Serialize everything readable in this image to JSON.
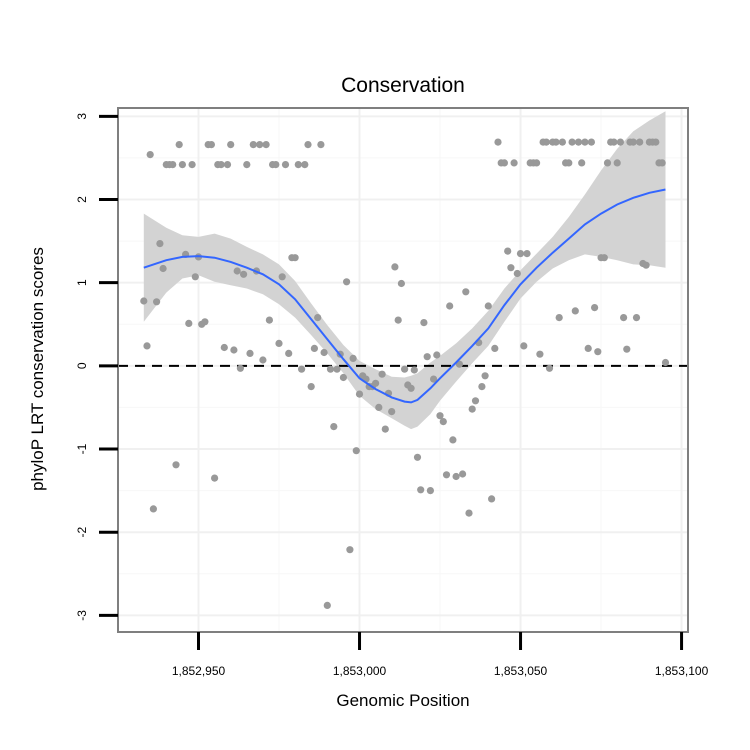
{
  "chart_data": {
    "type": "scatter",
    "title": "Conservation",
    "xlabel": "Genomic Position",
    "ylabel": "phyloP LRT conservation scores",
    "xlim": [
      1852925,
      1853102
    ],
    "ylim": [
      -3.2,
      3.1
    ],
    "x_ticks": [
      1852950,
      1853000,
      1853050,
      1853100
    ],
    "x_tick_labels": [
      "1,852,950",
      "1,853,000",
      "1,853,050",
      "1,853,100"
    ],
    "y_ticks": [
      -3,
      -2,
      -1,
      0,
      1,
      2,
      3
    ],
    "y_tick_labels": [
      "-3",
      "-2",
      "-1",
      "0",
      "1",
      "2",
      "3"
    ],
    "reference_line": {
      "y": 0,
      "style": "dashed",
      "color": "#000000"
    },
    "colors": {
      "points": "#999999",
      "smooth_line": "#3366ff",
      "confidence_band": "#d3d3d3",
      "panel_border": "#7f7f7f"
    },
    "points": [
      [
        1852933,
        0.78
      ],
      [
        1852934,
        0.24
      ],
      [
        1852935,
        2.54
      ],
      [
        1852936,
        -1.72
      ],
      [
        1852937,
        0.77
      ],
      [
        1852938,
        1.47
      ],
      [
        1852939,
        1.17
      ],
      [
        1852940,
        2.42
      ],
      [
        1852941,
        2.42
      ],
      [
        1852942,
        2.42
      ],
      [
        1852943,
        -1.19
      ],
      [
        1852944,
        2.66
      ],
      [
        1852945,
        2.42
      ],
      [
        1852946,
        1.34
      ],
      [
        1852947,
        0.51
      ],
      [
        1852948,
        2.42
      ],
      [
        1852949,
        1.07
      ],
      [
        1852950,
        1.31
      ],
      [
        1852951,
        0.5
      ],
      [
        1852952,
        0.53
      ],
      [
        1852953,
        2.66
      ],
      [
        1852954,
        2.66
      ],
      [
        1852955,
        -1.35
      ],
      [
        1852956,
        2.42
      ],
      [
        1852957,
        2.42
      ],
      [
        1852958,
        0.22
      ],
      [
        1852959,
        2.42
      ],
      [
        1852960,
        2.66
      ],
      [
        1852961,
        0.19
      ],
      [
        1852962,
        1.14
      ],
      [
        1852963,
        -0.03
      ],
      [
        1852964,
        1.1
      ],
      [
        1852965,
        2.42
      ],
      [
        1852966,
        0.15
      ],
      [
        1852967,
        2.66
      ],
      [
        1852968,
        1.14
      ],
      [
        1852969,
        2.66
      ],
      [
        1852970,
        0.07
      ],
      [
        1852971,
        2.66
      ],
      [
        1852972,
        0.55
      ],
      [
        1852973,
        2.42
      ],
      [
        1852974,
        2.42
      ],
      [
        1852975,
        0.27
      ],
      [
        1852976,
        1.07
      ],
      [
        1852977,
        2.42
      ],
      [
        1852978,
        0.15
      ],
      [
        1852979,
        1.3
      ],
      [
        1852980,
        1.3
      ],
      [
        1852981,
        2.42
      ],
      [
        1852982,
        -0.04
      ],
      [
        1852983,
        2.42
      ],
      [
        1852984,
        2.66
      ],
      [
        1852985,
        -0.25
      ],
      [
        1852986,
        0.21
      ],
      [
        1852987,
        0.58
      ],
      [
        1852988,
        2.66
      ],
      [
        1852989,
        0.16
      ],
      [
        1852990,
        -2.88
      ],
      [
        1852991,
        -0.04
      ],
      [
        1852992,
        -0.73
      ],
      [
        1852993,
        -0.04
      ],
      [
        1852994,
        0.14
      ],
      [
        1852995,
        -0.14
      ],
      [
        1852996,
        1.01
      ],
      [
        1852997,
        -2.21
      ],
      [
        1852998,
        0.09
      ],
      [
        1852999,
        -1.02
      ],
      [
        1853000,
        -0.34
      ],
      [
        1853001,
        -0.12
      ],
      [
        1853002,
        -0.16
      ],
      [
        1853003,
        -0.25
      ],
      [
        1853004,
        -0.25
      ],
      [
        1853005,
        -0.21
      ],
      [
        1853006,
        -0.5
      ],
      [
        1853007,
        -0.1
      ],
      [
        1853008,
        -0.76
      ],
      [
        1853009,
        -0.33
      ],
      [
        1853010,
        -0.55
      ],
      [
        1853011,
        1.19
      ],
      [
        1853012,
        0.55
      ],
      [
        1853013,
        0.99
      ],
      [
        1853014,
        -0.04
      ],
      [
        1853015,
        -0.23
      ],
      [
        1853016,
        -0.27
      ],
      [
        1853017,
        -0.05
      ],
      [
        1853018,
        -1.1
      ],
      [
        1853019,
        -1.49
      ],
      [
        1853020,
        0.52
      ],
      [
        1853021,
        0.11
      ],
      [
        1853022,
        -1.5
      ],
      [
        1853023,
        -0.16
      ],
      [
        1853024,
        0.13
      ],
      [
        1853025,
        -0.6
      ],
      [
        1853026,
        -0.67
      ],
      [
        1853027,
        -1.31
      ],
      [
        1853028,
        0.72
      ],
      [
        1853029,
        -0.89
      ],
      [
        1853030,
        -1.33
      ],
      [
        1853031,
        0.02
      ],
      [
        1853032,
        -1.3
      ],
      [
        1853033,
        0.89
      ],
      [
        1853034,
        -1.77
      ],
      [
        1853035,
        -0.52
      ],
      [
        1853036,
        -0.42
      ],
      [
        1853037,
        0.28
      ],
      [
        1853038,
        -0.25
      ],
      [
        1853039,
        -0.12
      ],
      [
        1853040,
        0.72
      ],
      [
        1853041,
        -1.6
      ],
      [
        1853042,
        0.21
      ],
      [
        1853043,
        2.69
      ],
      [
        1853044,
        2.44
      ],
      [
        1853045,
        2.44
      ],
      [
        1853046,
        1.38
      ],
      [
        1853047,
        1.18
      ],
      [
        1853048,
        2.44
      ],
      [
        1853049,
        1.11
      ],
      [
        1853050,
        1.35
      ],
      [
        1853051,
        0.24
      ],
      [
        1853052,
        1.35
      ],
      [
        1853053,
        2.44
      ],
      [
        1853054,
        2.44
      ],
      [
        1853055,
        2.44
      ],
      [
        1853056,
        0.14
      ],
      [
        1853057,
        2.69
      ],
      [
        1853058,
        2.69
      ],
      [
        1853059,
        -0.03
      ],
      [
        1853060,
        2.69
      ],
      [
        1853061,
        2.69
      ],
      [
        1853062,
        0.58
      ],
      [
        1853063,
        2.69
      ],
      [
        1853064,
        2.44
      ],
      [
        1853065,
        2.44
      ],
      [
        1853066,
        2.69
      ],
      [
        1853067,
        0.66
      ],
      [
        1853068,
        2.69
      ],
      [
        1853069,
        2.44
      ],
      [
        1853070,
        2.69
      ],
      [
        1853071,
        0.21
      ],
      [
        1853072,
        2.69
      ],
      [
        1853073,
        0.7
      ],
      [
        1853074,
        0.17
      ],
      [
        1853075,
        1.3
      ],
      [
        1853076,
        1.3
      ],
      [
        1853077,
        2.44
      ],
      [
        1853078,
        2.69
      ],
      [
        1853079,
        2.69
      ],
      [
        1853080,
        2.44
      ],
      [
        1853081,
        2.69
      ],
      [
        1853082,
        0.58
      ],
      [
        1853083,
        0.2
      ],
      [
        1853084,
        2.69
      ],
      [
        1853085,
        2.69
      ],
      [
        1853086,
        0.58
      ],
      [
        1853087,
        2.69
      ],
      [
        1853088,
        1.23
      ],
      [
        1853089,
        1.21
      ],
      [
        1853090,
        2.69
      ],
      [
        1853091,
        2.69
      ],
      [
        1853092,
        2.69
      ],
      [
        1853093,
        2.44
      ],
      [
        1853094,
        2.44
      ],
      [
        1853095,
        0.04
      ]
    ],
    "smooth": {
      "x": [
        1852933,
        1852940,
        1852945,
        1852950,
        1852955,
        1852960,
        1852965,
        1852970,
        1852975,
        1852980,
        1852985,
        1852990,
        1852995,
        1853000,
        1853005,
        1853010,
        1853014,
        1853016,
        1853018,
        1853022,
        1853025,
        1853030,
        1853035,
        1853040,
        1853045,
        1853050,
        1853055,
        1853060,
        1853065,
        1853070,
        1853075,
        1853080,
        1853085,
        1853090,
        1853095
      ],
      "y": [
        1.18,
        1.27,
        1.31,
        1.32,
        1.3,
        1.25,
        1.18,
        1.1,
        0.98,
        0.8,
        0.56,
        0.32,
        0.08,
        -0.15,
        -0.28,
        -0.38,
        -0.43,
        -0.44,
        -0.41,
        -0.27,
        -0.15,
        0.04,
        0.24,
        0.45,
        0.73,
        0.98,
        1.18,
        1.36,
        1.53,
        1.7,
        1.83,
        1.94,
        2.02,
        2.08,
        2.12
      ],
      "lower": [
        0.53,
        0.88,
        1.05,
        1.09,
        1.01,
        0.97,
        0.93,
        0.86,
        0.74,
        0.58,
        0.37,
        0.15,
        -0.09,
        -0.36,
        -0.52,
        -0.63,
        -0.72,
        -0.76,
        -0.73,
        -0.58,
        -0.42,
        -0.19,
        0.03,
        0.24,
        0.53,
        0.81,
        1.01,
        1.17,
        1.27,
        1.34,
        1.31,
        1.27,
        1.22,
        1.21,
        1.18
      ],
      "upper": [
        1.83,
        1.66,
        1.57,
        1.55,
        1.59,
        1.53,
        1.43,
        1.34,
        1.22,
        1.02,
        0.75,
        0.49,
        0.25,
        0.06,
        -0.04,
        -0.13,
        -0.14,
        -0.12,
        -0.09,
        0.04,
        0.12,
        0.27,
        0.45,
        0.66,
        0.93,
        1.15,
        1.35,
        1.55,
        1.79,
        2.06,
        2.35,
        2.61,
        2.82,
        2.95,
        3.06
      ]
    }
  }
}
